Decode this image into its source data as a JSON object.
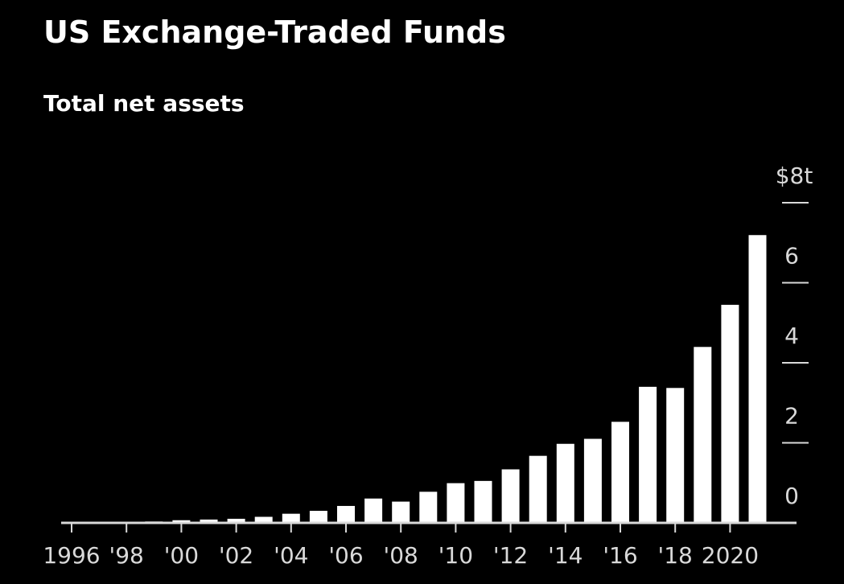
{
  "title": "US Exchange-Traded Funds",
  "subtitle": "Total net assets",
  "colors": {
    "background": "#000000",
    "bar": "#ffffff",
    "text": "#d9d9d9",
    "axis": "#d9d9d9"
  },
  "chart_data": {
    "type": "bar",
    "title": "US Exchange-Traded Funds",
    "subtitle": "Total net assets",
    "xlabel": "",
    "ylabel": "",
    "categories": [
      1996,
      1997,
      1998,
      1999,
      2000,
      2001,
      2002,
      2003,
      2004,
      2005,
      2006,
      2007,
      2008,
      2009,
      2010,
      2011,
      2012,
      2013,
      2014,
      2015,
      2016,
      2017,
      2018,
      2019,
      2020,
      2021
    ],
    "values": [
      0.002,
      0.007,
      0.016,
      0.034,
      0.066,
      0.083,
      0.102,
      0.151,
      0.228,
      0.301,
      0.423,
      0.608,
      0.531,
      0.777,
      0.992,
      1.048,
      1.337,
      1.675,
      1.975,
      2.1,
      2.525,
      3.4,
      3.371,
      4.396,
      5.449,
      7.191
    ],
    "ylim": [
      0,
      8
    ],
    "yticks": [
      0,
      2,
      4,
      6,
      8
    ],
    "ytick_labels": [
      "0",
      "2",
      "4",
      "6",
      "$8t"
    ],
    "xtick_labels": [
      {
        "year": 1996,
        "label": "1996"
      },
      {
        "year": 1998,
        "label": "'98"
      },
      {
        "year": 2000,
        "label": "'00"
      },
      {
        "year": 2002,
        "label": "'02"
      },
      {
        "year": 2004,
        "label": "'04"
      },
      {
        "year": 2006,
        "label": "'06"
      },
      {
        "year": 2008,
        "label": "'08"
      },
      {
        "year": 2010,
        "label": "'10"
      },
      {
        "year": 2012,
        "label": "'12"
      },
      {
        "year": 2014,
        "label": "'14"
      },
      {
        "year": 2016,
        "label": "'16"
      },
      {
        "year": 2018,
        "label": "'18"
      },
      {
        "year": 2020,
        "label": "2020"
      }
    ],
    "grid": false,
    "legend": "none",
    "y_axis_position": "right"
  }
}
